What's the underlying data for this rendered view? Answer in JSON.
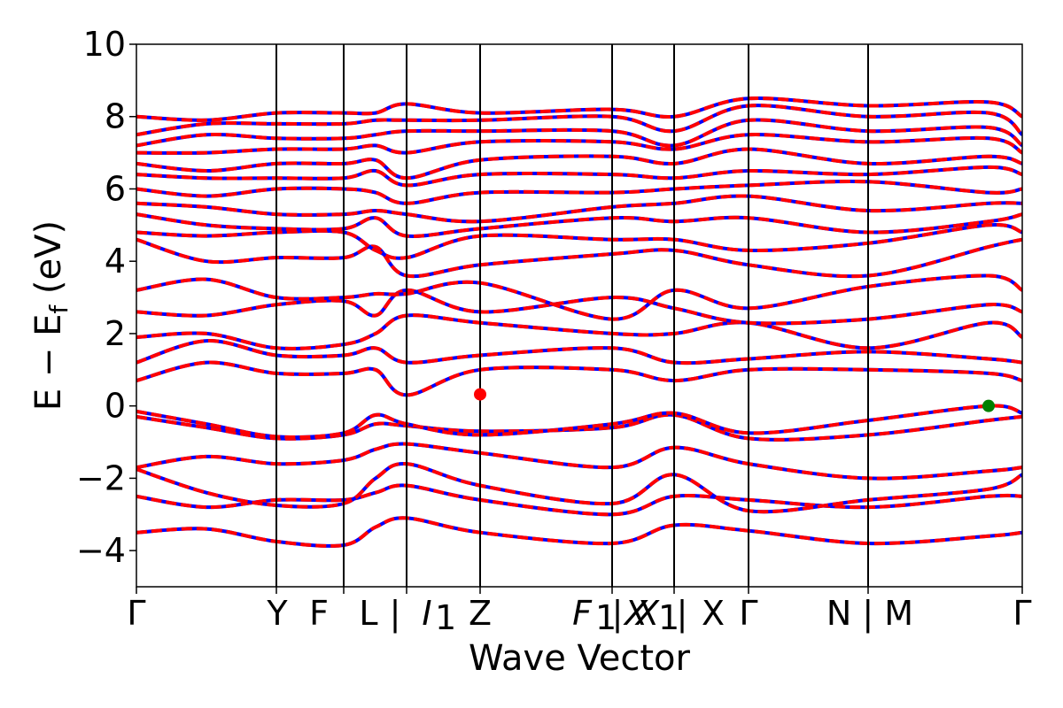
{
  "chart_data": {
    "type": "line",
    "title": "",
    "xlabel": "Wave Vector",
    "ylabel": "E − E_f (eV)",
    "ylabel_parts": {
      "main": "E − E",
      "sub": "f",
      "unit": " (eV)"
    },
    "ylim": [
      -5,
      10
    ],
    "yticks": [
      -4,
      -2,
      0,
      2,
      4,
      6,
      8,
      10
    ],
    "x_range": [
      0,
      1
    ],
    "kpoints": [
      {
        "x": 0.0,
        "label": "Γ"
      },
      {
        "x": 0.158,
        "label": "Y"
      },
      {
        "x": 0.234,
        "label": "F"
      },
      {
        "x": 0.234,
        "label": "L | I"
      },
      {
        "x": 0.305,
        "label": "I₁"
      },
      {
        "x": 0.388,
        "label": "Z"
      },
      {
        "x": 0.537,
        "label": "F₁ | X"
      },
      {
        "x": 0.607,
        "label": "X₁ | X"
      },
      {
        "x": 0.691,
        "label": "Γ"
      },
      {
        "x": 0.826,
        "label": "N | M"
      },
      {
        "x": 1.0,
        "label": "Γ"
      }
    ],
    "xtick_label_text": [
      "Γ",
      "Y",
      "F",
      "L",
      "|",
      "I",
      "1",
      "Z",
      "F",
      "1",
      "|",
      "X",
      "X",
      "1",
      "|",
      "X",
      "Γ",
      "N | M",
      "Γ"
    ],
    "series": [
      {
        "spin": "up",
        "color": "#0000ff",
        "style": "solid"
      },
      {
        "spin": "down",
        "color": "#ff0000",
        "style": "dashed"
      }
    ],
    "bands": [
      {
        "ys": [
          -3.5,
          -3.4,
          -3.75,
          -3.85,
          -3.35,
          -3.1,
          -3.5,
          -3.8,
          -3.3,
          -3.45,
          -3.8,
          -3.6,
          -3.5
        ]
      },
      {
        "ys": [
          -2.5,
          -2.8,
          -2.6,
          -2.6,
          -2.4,
          -2.2,
          -2.6,
          -3.0,
          -2.5,
          -2.6,
          -2.8,
          -2.5,
          -2.5
        ]
      },
      {
        "ys": [
          -1.75,
          -2.4,
          -2.75,
          -2.7,
          -2.0,
          -1.6,
          -2.2,
          -2.7,
          -1.9,
          -2.9,
          -2.6,
          -2.3,
          -1.9
        ]
      },
      {
        "ys": [
          -1.7,
          -1.4,
          -1.6,
          -1.5,
          -1.2,
          -1.05,
          -1.3,
          -1.7,
          -1.15,
          -1.6,
          -2.0,
          -1.8,
          -1.7
        ]
      },
      {
        "ys": [
          -0.3,
          -0.6,
          -0.9,
          -0.8,
          -0.5,
          -0.55,
          -0.7,
          -0.6,
          -0.25,
          -0.9,
          -0.8,
          -0.4,
          -0.3
        ]
      },
      {
        "ys": [
          -0.15,
          -0.5,
          -0.85,
          -0.75,
          -0.25,
          -0.5,
          -0.8,
          -0.5,
          -0.2,
          -0.75,
          -0.4,
          0.0,
          -0.2
        ]
      },
      {
        "ys": [
          0.7,
          1.2,
          0.9,
          0.9,
          1.0,
          0.3,
          1.0,
          1.0,
          0.7,
          1.0,
          1.0,
          0.9,
          0.7
        ]
      },
      {
        "ys": [
          1.2,
          1.8,
          1.4,
          1.4,
          1.6,
          1.2,
          1.4,
          1.6,
          1.2,
          1.3,
          1.5,
          1.3,
          1.2
        ]
      },
      {
        "ys": [
          1.9,
          2.0,
          1.6,
          1.7,
          2.0,
          2.5,
          2.3,
          2.0,
          2.0,
          2.3,
          1.6,
          2.3,
          1.9
        ]
      },
      {
        "ys": [
          2.6,
          2.5,
          2.8,
          2.9,
          2.5,
          3.2,
          2.6,
          3.0,
          2.7,
          2.3,
          2.4,
          2.8,
          2.6
        ]
      },
      {
        "ys": [
          3.2,
          3.5,
          3.0,
          3.0,
          3.1,
          3.1,
          3.4,
          2.4,
          3.2,
          2.7,
          3.3,
          3.6,
          3.2
        ]
      },
      {
        "ys": [
          4.6,
          4.0,
          4.1,
          4.1,
          4.4,
          3.6,
          3.9,
          4.2,
          4.3,
          3.9,
          3.6,
          4.4,
          4.6
        ]
      },
      {
        "ys": [
          4.8,
          4.7,
          4.8,
          4.8,
          4.3,
          4.1,
          4.7,
          4.6,
          4.6,
          4.3,
          4.5,
          5.0,
          4.8
        ]
      },
      {
        "ys": [
          5.3,
          5.0,
          4.9,
          4.9,
          5.2,
          4.7,
          4.9,
          5.2,
          5.1,
          5.2,
          4.8,
          5.1,
          5.3
        ]
      },
      {
        "ys": [
          5.6,
          5.5,
          5.3,
          5.3,
          5.4,
          5.3,
          5.1,
          5.5,
          5.6,
          5.8,
          5.4,
          5.6,
          5.6
        ]
      },
      {
        "ys": [
          6.0,
          5.8,
          6.0,
          6.0,
          5.9,
          5.6,
          5.9,
          5.9,
          6.0,
          6.1,
          6.2,
          5.9,
          6.0
        ]
      },
      {
        "ys": [
          6.4,
          6.3,
          6.3,
          6.3,
          6.5,
          6.1,
          6.4,
          6.4,
          6.3,
          6.5,
          6.4,
          6.6,
          6.4
        ]
      },
      {
        "ys": [
          6.7,
          6.5,
          6.7,
          6.7,
          6.8,
          6.3,
          6.8,
          6.9,
          6.7,
          7.1,
          6.7,
          6.9,
          6.7
        ]
      },
      {
        "ys": [
          7.0,
          7.0,
          7.1,
          7.1,
          7.2,
          7.0,
          7.3,
          7.3,
          7.1,
          7.5,
          7.3,
          7.4,
          7.0
        ]
      },
      {
        "ys": [
          7.2,
          7.5,
          7.4,
          7.4,
          7.5,
          7.6,
          7.6,
          7.6,
          7.2,
          7.9,
          7.6,
          7.7,
          7.2
        ]
      },
      {
        "ys": [
          7.5,
          7.8,
          7.8,
          7.8,
          7.9,
          7.9,
          7.9,
          8.0,
          7.6,
          8.3,
          8.0,
          8.1,
          7.5
        ]
      },
      {
        "ys": [
          8.0,
          7.9,
          8.1,
          8.1,
          8.1,
          8.35,
          8.1,
          8.2,
          8.0,
          8.5,
          8.3,
          8.4,
          8.0
        ]
      }
    ],
    "markers": [
      {
        "x": 0.388,
        "y": 0.32,
        "color": "#ff0000",
        "note": "CBM"
      },
      {
        "x": 0.962,
        "y": 0.0,
        "color": "#008000",
        "note": "VBM"
      }
    ]
  }
}
